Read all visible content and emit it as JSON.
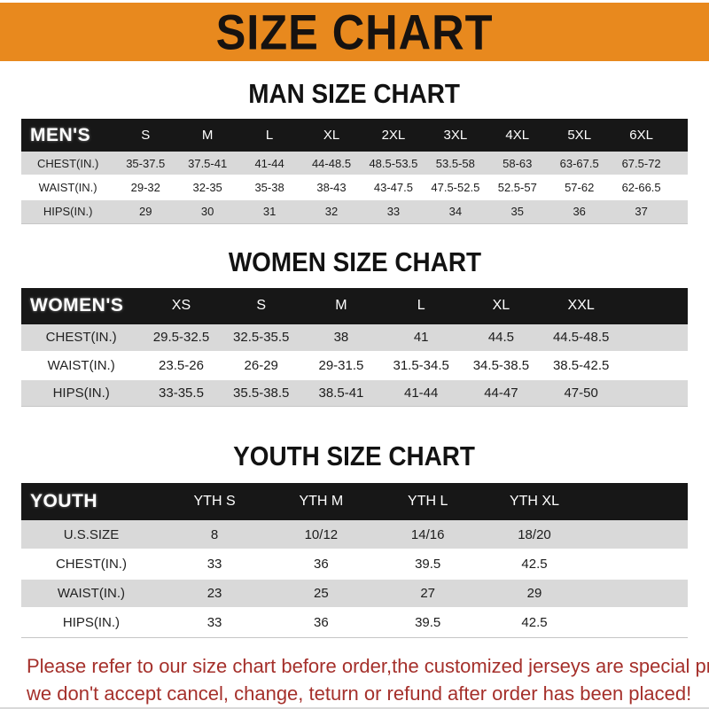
{
  "banner": {
    "title": "SIZE CHART"
  },
  "colors": {
    "banner_orange": "#E8891E",
    "header_black": "#171717",
    "row_gray": "#D9D9D9",
    "footer_red": "#A5302B"
  },
  "chart_data": [
    {
      "type": "table",
      "title": "MAN SIZE CHART",
      "group_label": "MEN'S",
      "columns": [
        "S",
        "M",
        "L",
        "XL",
        "2XL",
        "3XL",
        "4XL",
        "5XL",
        "6XL"
      ],
      "rows": [
        {
          "label": "CHEST(IN.)",
          "values": [
            "35-37.5",
            "37.5-41",
            "41-44",
            "44-48.5",
            "48.5-53.5",
            "53.5-58",
            "58-63",
            "63-67.5",
            "67.5-72"
          ]
        },
        {
          "label": "WAIST(IN.)",
          "values": [
            "29-32",
            "32-35",
            "35-38",
            "38-43",
            "43-47.5",
            "47.5-52.5",
            "52.5-57",
            "57-62",
            "62-66.5"
          ]
        },
        {
          "label": "HIPS(IN.)",
          "values": [
            "29",
            "30",
            "31",
            "32",
            "33",
            "34",
            "35",
            "36",
            "37"
          ]
        }
      ]
    },
    {
      "type": "table",
      "title": "WOMEN SIZE CHART",
      "group_label": "WOMEN'S",
      "columns": [
        "XS",
        "S",
        "M",
        "L",
        "XL",
        "XXL"
      ],
      "rows": [
        {
          "label": "CHEST(IN.)",
          "values": [
            "29.5-32.5",
            "32.5-35.5",
            "38",
            "41",
            "44.5",
            "44.5-48.5"
          ]
        },
        {
          "label": "WAIST(IN.)",
          "values": [
            "23.5-26",
            "26-29",
            "29-31.5",
            "31.5-34.5",
            "34.5-38.5",
            "38.5-42.5"
          ]
        },
        {
          "label": "HIPS(IN.)",
          "values": [
            "33-35.5",
            "35.5-38.5",
            "38.5-41",
            "41-44",
            "44-47",
            "47-50"
          ]
        }
      ]
    },
    {
      "type": "table",
      "title": "YOUTH SIZE CHART",
      "group_label": "YOUTH",
      "columns": [
        "YTH S",
        "YTH M",
        "YTH L",
        "YTH XL"
      ],
      "rows": [
        {
          "label": "U.S.SIZE",
          "values": [
            "8",
            "10/12",
            "14/16",
            "18/20"
          ]
        },
        {
          "label": "CHEST(IN.)",
          "values": [
            "33",
            "36",
            "39.5",
            "42.5"
          ]
        },
        {
          "label": "WAIST(IN.)",
          "values": [
            "23",
            "25",
            "27",
            "29"
          ]
        },
        {
          "label": "HIPS(IN.)",
          "values": [
            "33",
            "36",
            "39.5",
            "42.5"
          ]
        }
      ]
    }
  ],
  "footer": {
    "line1": "Please refer to our size chart before order,the customized jerseys are special products,",
    "line2": "we don't accept cancel, change, teturn or refund after order has been placed!"
  }
}
